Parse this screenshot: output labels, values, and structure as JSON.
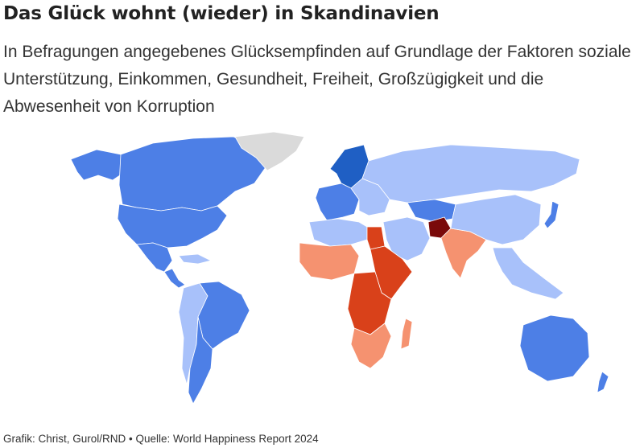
{
  "title": "Das Glück wohnt (wieder) in Skandinavien",
  "subtitle": "In Befragungen angegebenes Glücksempfinden auf Grundlage der Faktoren soziale Unterstützung, Einkommen, Gesundheit, Freiheit, Großzügigkeit und die Abwesenheit von Korruption",
  "footer": "Grafik: Christ, Gurol/RND • Quelle: World Happiness Report 2024",
  "colors": {
    "very_high": "#1f5fc4",
    "high": "#4d7fe6",
    "mid_high": "#a8c1fa",
    "mid_low": "#f59270",
    "low": "#d9411a",
    "very_low": "#7a0a0a",
    "no_data": "#dadada",
    "border": "#ffffff"
  },
  "map": {
    "type": "choropleth-world",
    "regions": [
      {
        "name": "alaska",
        "level": "high"
      },
      {
        "name": "canada",
        "level": "high"
      },
      {
        "name": "usa",
        "level": "high"
      },
      {
        "name": "greenland",
        "level": "no_data"
      },
      {
        "name": "mexico",
        "level": "high"
      },
      {
        "name": "central-america",
        "level": "high"
      },
      {
        "name": "caribbean",
        "level": "mid_high"
      },
      {
        "name": "brazil",
        "level": "high"
      },
      {
        "name": "andes",
        "level": "mid_high"
      },
      {
        "name": "southern-cone",
        "level": "high"
      },
      {
        "name": "nordics",
        "level": "very_high"
      },
      {
        "name": "western-europe",
        "level": "high"
      },
      {
        "name": "eastern-europe",
        "level": "mid_high"
      },
      {
        "name": "russia",
        "level": "mid_high"
      },
      {
        "name": "central-asia",
        "level": "high"
      },
      {
        "name": "middle-east",
        "level": "mid_high"
      },
      {
        "name": "afghanistan",
        "level": "very_low"
      },
      {
        "name": "south-asia",
        "level": "mid_low"
      },
      {
        "name": "china",
        "level": "mid_high"
      },
      {
        "name": "japan",
        "level": "high"
      },
      {
        "name": "southeast-asia",
        "level": "mid_high"
      },
      {
        "name": "north-africa",
        "level": "mid_high"
      },
      {
        "name": "egypt",
        "level": "low"
      },
      {
        "name": "west-africa",
        "level": "mid_low"
      },
      {
        "name": "central-africa",
        "level": "low"
      },
      {
        "name": "east-africa",
        "level": "low"
      },
      {
        "name": "southern-africa",
        "level": "mid_low"
      },
      {
        "name": "madagascar",
        "level": "mid_low"
      },
      {
        "name": "australia",
        "level": "high"
      },
      {
        "name": "new-zealand",
        "level": "high"
      }
    ]
  }
}
